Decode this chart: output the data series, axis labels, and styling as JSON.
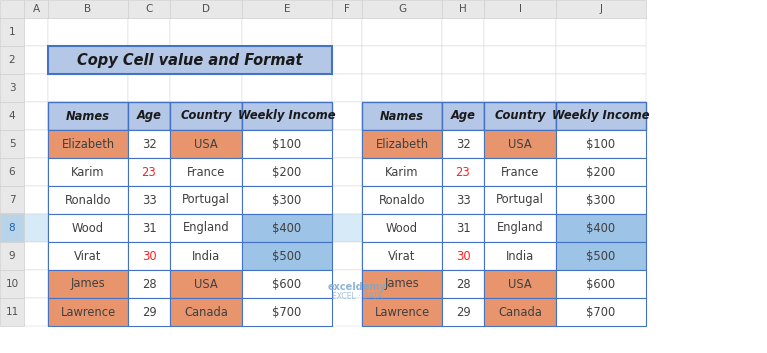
{
  "title": "Copy Cell value and Format",
  "col_headers": [
    "Names",
    "Age",
    "Country",
    "Weekly Income"
  ],
  "rows": [
    {
      "name": "Elizabeth",
      "age": "32",
      "country": "USA",
      "income": "$100"
    },
    {
      "name": "Karim",
      "age": "23",
      "country": "France",
      "income": "$200"
    },
    {
      "name": "Ronaldo",
      "age": "33",
      "country": "Portugal",
      "income": "$300"
    },
    {
      "name": "Wood",
      "age": "31",
      "country": "England",
      "income": "$400"
    },
    {
      "name": "Virat",
      "age": "30",
      "country": "India",
      "income": "$500"
    },
    {
      "name": "James",
      "age": "28",
      "country": "USA",
      "income": "$600"
    },
    {
      "name": "Lawrence",
      "age": "29",
      "country": "Canada",
      "income": "$700"
    }
  ],
  "cell_colors_left": [
    [
      "#e8956d",
      "#ffffff",
      "#e8956d",
      "#ffffff"
    ],
    [
      "#ffffff",
      "#ffffff",
      "#ffffff",
      "#ffffff"
    ],
    [
      "#ffffff",
      "#ffffff",
      "#ffffff",
      "#ffffff"
    ],
    [
      "#ffffff",
      "#ffffff",
      "#ffffff",
      "#9dc3e6"
    ],
    [
      "#ffffff",
      "#ffffff",
      "#ffffff",
      "#9dc3e6"
    ],
    [
      "#e8956d",
      "#ffffff",
      "#e8956d",
      "#ffffff"
    ],
    [
      "#e8956d",
      "#ffffff",
      "#e8956d",
      "#ffffff"
    ]
  ],
  "cell_colors_right": [
    [
      "#e8956d",
      "#ffffff",
      "#e8956d",
      "#ffffff"
    ],
    [
      "#ffffff",
      "#ffffff",
      "#ffffff",
      "#ffffff"
    ],
    [
      "#ffffff",
      "#ffffff",
      "#ffffff",
      "#ffffff"
    ],
    [
      "#ffffff",
      "#ffffff",
      "#ffffff",
      "#9dc3e6"
    ],
    [
      "#ffffff",
      "#ffffff",
      "#ffffff",
      "#9dc3e6"
    ],
    [
      "#e8956d",
      "#ffffff",
      "#e8956d",
      "#ffffff"
    ],
    [
      "#e8956d",
      "#ffffff",
      "#e8956d",
      "#ffffff"
    ]
  ],
  "age_red_rows": [
    1,
    4
  ],
  "red_text": "#ff2020",
  "dark_text": "#404040",
  "header_bg": "#b4c7e7",
  "header_border": "#4472c4",
  "title_bg": "#b4c7e7",
  "title_border": "#4472c4",
  "excel_col_hdr_bg": "#e8e8e8",
  "excel_row_hdr_bg": "#e8e8e8",
  "excel_row8_bg": "#d6eaf8",
  "excel_row8_num_bg": "#b8d4ea",
  "grid_line": "#d0d0d0",
  "white": "#ffffff",
  "table_border": "#4472c4",
  "col_letters": [
    "A",
    "B",
    "C",
    "D",
    "E",
    "F",
    "G",
    "H",
    "I",
    "J"
  ],
  "n_excel_rows": 11
}
